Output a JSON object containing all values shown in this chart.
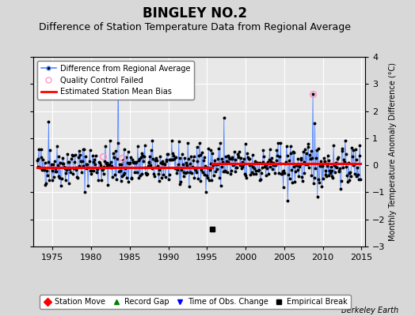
{
  "title": "BINGLEY NO.2",
  "subtitle": "Difference of Station Temperature Data from Regional Average",
  "ylabel": "Monthly Temperature Anomaly Difference (°C)",
  "xlabel_credit": "Berkeley Earth",
  "xlim": [
    1972.5,
    2015.5
  ],
  "ylim": [
    -3,
    4
  ],
  "yticks": [
    -3,
    -2,
    -1,
    0,
    1,
    2,
    3,
    4
  ],
  "xticks": [
    1975,
    1980,
    1985,
    1990,
    1995,
    2000,
    2005,
    2010,
    2015
  ],
  "bias_before_val": -0.08,
  "bias_after_val": 0.07,
  "bias_break_year": 1995.7,
  "empirical_break_x": 1995.7,
  "empirical_break_y": -2.35,
  "qc_failed_points": [
    [
      1981.5,
      0.32
    ],
    [
      1984.0,
      0.28
    ],
    [
      2008.7,
      2.62
    ]
  ],
  "bg_color": "#d8d8d8",
  "plot_bg_color": "#e8e8e8",
  "line_color": "#5588ff",
  "dot_color": "#000000",
  "bias_color": "#ff0000",
  "qc_color": "#ff99cc",
  "grid_color": "#ffffff",
  "title_fontsize": 12,
  "subtitle_fontsize": 9,
  "tick_fontsize": 8,
  "seed": 42,
  "start_year": 1973.0,
  "end_year": 2014.9,
  "spike_1984_x": 1983.5,
  "spike_1984_y": 3.35,
  "spike_1975_x": 1974.5,
  "spike_1975_y": 1.6,
  "spike_1997_x": 1997.2,
  "spike_1997_y": 1.75,
  "spike_1997neg_x": 2005.5,
  "spike_1997neg_y": -1.3,
  "spike_2009neg_x": 2009.3,
  "spike_2009neg_y": -1.15,
  "spike_2009pos_x": 2009.0,
  "spike_2009pos_y": 1.55
}
